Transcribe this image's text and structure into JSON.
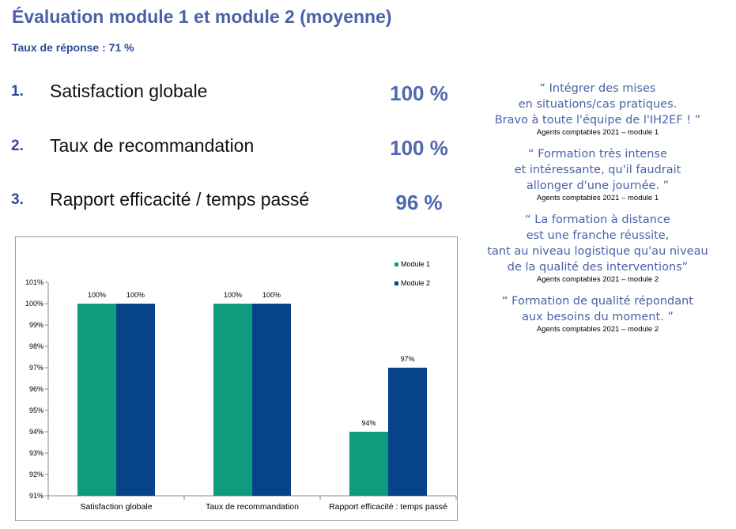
{
  "header": {
    "title": "Évaluation module 1 et module 2 (moyenne)",
    "response_rate": "Taux de réponse : 71 %"
  },
  "kpis": [
    {
      "number": "1.",
      "label": "Satisfaction globale",
      "value": "100 %"
    },
    {
      "number": "2.",
      "label": "Taux de recommandation",
      "value": "100 %"
    },
    {
      "number": "3.",
      "label": "Rapport efficacité / temps passé",
      "value": "96 %"
    }
  ],
  "quotes": [
    {
      "text": "“ Intégrer des mises\nen situations/cas pratiques.\nBravo à toute l'équipe de l'IH2EF ! ”",
      "author": "Agents comptables 2021 – module 1"
    },
    {
      "text": "“ Formation très intense\net intéressante, qu'il faudrait\nallonger d'une journée. ”",
      "author": "Agents comptables 2021 – module 1"
    },
    {
      "text": "“ La formation à distance\nest une franche réussite,\ntant au niveau logistique qu'au niveau\nde la qualité des interventions”",
      "author": "Agents comptables 2021 – module 2"
    },
    {
      "text": "“ Formation de qualité répondant\naux besoins du moment. ”",
      "author": "Agents comptables 2021 – module 2"
    }
  ],
  "colors": {
    "module1": "#0f9b7e",
    "module2": "#064388",
    "title": "#4a61a8",
    "accent": "#2e4a9a"
  },
  "chart_data": {
    "type": "bar",
    "categories": [
      "Satisfaction globale",
      "Taux de recommandation",
      "Rapport efficacité : temps passé"
    ],
    "series": [
      {
        "name": "Module 1",
        "values": [
          100,
          100,
          94
        ],
        "labels": [
          "100%",
          "100%",
          "94%"
        ],
        "color": "#0f9b7e"
      },
      {
        "name": "Module 2",
        "values": [
          100,
          100,
          97
        ],
        "labels": [
          "100%",
          "100%",
          "97%"
        ],
        "color": "#064388"
      }
    ],
    "ylim": [
      91,
      101
    ],
    "yticks": [
      91,
      92,
      93,
      94,
      95,
      96,
      97,
      98,
      99,
      100,
      101
    ],
    "ytick_labels": [
      "91%",
      "92%",
      "93%",
      "94%",
      "95%",
      "96%",
      "97%",
      "98%",
      "99%",
      "100%",
      "101%"
    ],
    "grid": false,
    "legend": "top-right",
    "title": "",
    "xlabel": "",
    "ylabel": ""
  }
}
